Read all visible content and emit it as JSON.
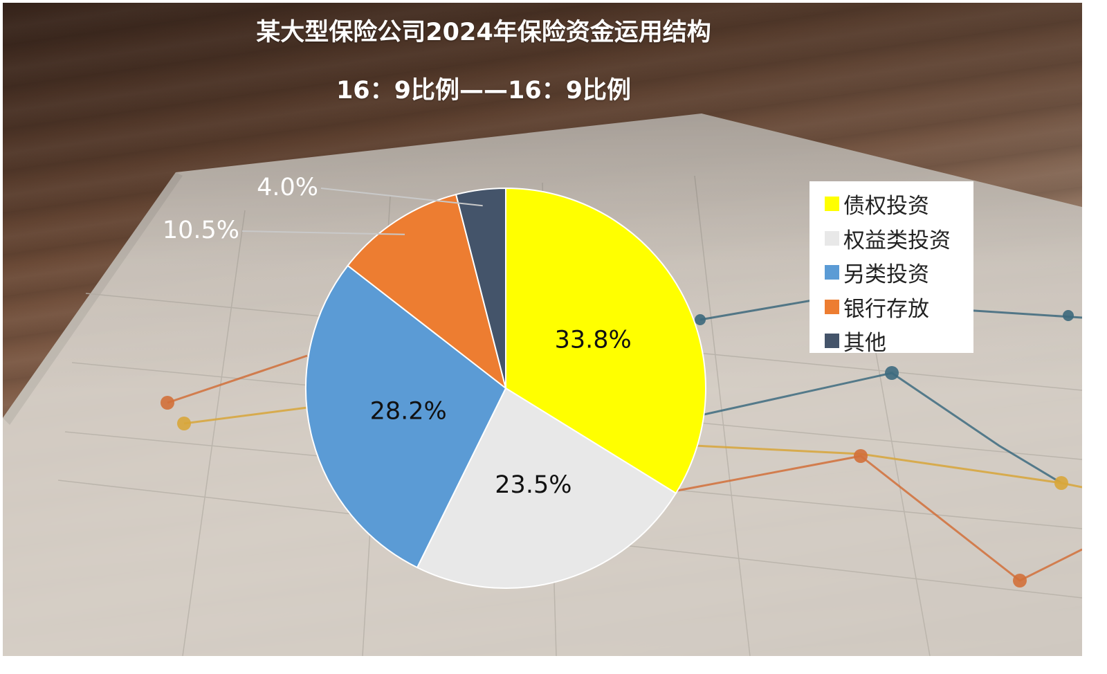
{
  "chart_data": {
    "type": "pie",
    "title": "某大型保险公司2024年保险资金运用结构",
    "subtitle": "16：9比例——16：9比例",
    "categories": [
      "债权投资",
      "权益类投资",
      "另类投资",
      "银行存放",
      "其他"
    ],
    "values": [
      33.8,
      23.5,
      28.2,
      10.5,
      4.0
    ],
    "labels": [
      "33.8%",
      "23.5%",
      "28.2%",
      "10.5%",
      "4.0%"
    ],
    "colors": [
      "#ffff00",
      "#e8e8e8",
      "#5b9bd5",
      "#ed7d31",
      "#44546a"
    ],
    "legend_position": "right",
    "start_angle": "12 o'clock, clockwise"
  }
}
